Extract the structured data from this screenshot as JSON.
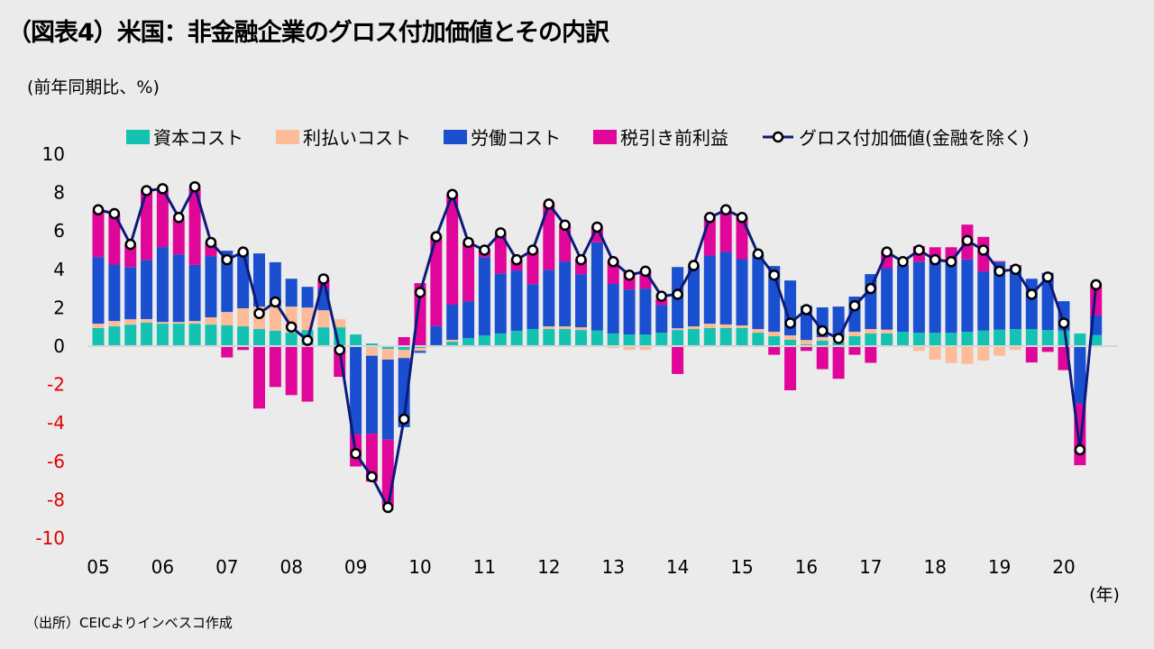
{
  "title": "（図表4）米国：非金融企業のグロス付加価値とその内訳",
  "unit_label": "(前年同期比、%)",
  "source": "（出所）CEICよりインベスコ作成",
  "colors": {
    "capital": "#14c2b2",
    "interest": "#fdbb98",
    "labor": "#1a4fd0",
    "profit": "#e0069a",
    "line": "#0d1a7a",
    "negative_tick": "#e00000",
    "background": "#ebebeb"
  },
  "chart_data": {
    "type": "bar",
    "stacked": true,
    "xlabel": "(年)",
    "x_tick_labels": [
      "05",
      "06",
      "07",
      "08",
      "09",
      "10",
      "11",
      "12",
      "13",
      "14",
      "15",
      "16",
      "17",
      "18",
      "19",
      "20"
    ],
    "ylim": [
      -10,
      10
    ],
    "y_ticks": [
      10,
      8,
      6,
      4,
      2,
      0,
      -2,
      -4,
      -6,
      -8,
      -10
    ],
    "grid": false,
    "legend_position": "top",
    "series": [
      {
        "name": "資本コスト",
        "key": "capital",
        "values": [
          0.94,
          1.03,
          1.12,
          1.22,
          1.17,
          1.17,
          1.17,
          1.12,
          1.08,
          1.03,
          0.89,
          0.8,
          0.7,
          0.84,
          0.98,
          0.98,
          0.61,
          0.14,
          -0.15,
          -0.2,
          -0.1,
          0.05,
          0.23,
          0.42,
          0.56,
          0.66,
          0.8,
          0.89,
          0.89,
          0.89,
          0.84,
          0.81,
          0.66,
          0.61,
          0.61,
          0.7,
          0.84,
          0.89,
          0.94,
          0.94,
          0.94,
          0.7,
          0.52,
          0.33,
          0.09,
          0.28,
          0.23,
          0.52,
          0.66,
          0.66,
          0.75,
          0.7,
          0.7,
          0.7,
          0.75,
          0.81,
          0.86,
          0.89,
          0.89,
          0.84,
          0.81,
          0.66,
          0.58
        ]
      },
      {
        "name": "利払いコスト",
        "key": "interest",
        "values": [
          0.23,
          0.28,
          0.28,
          0.19,
          0.09,
          0.09,
          0.14,
          0.38,
          0.7,
          0.94,
          1.17,
          1.27,
          1.36,
          1.17,
          0.89,
          0.42,
          0,
          -0.5,
          -0.55,
          -0.42,
          -0.15,
          0,
          0.1,
          0,
          0,
          0,
          0,
          0,
          0.14,
          0.14,
          0.14,
          0,
          -0.1,
          -0.2,
          -0.2,
          -0.05,
          0.09,
          0.14,
          0.23,
          0.19,
          0.14,
          0.19,
          0.23,
          0.23,
          0.23,
          0.19,
          0.23,
          0.23,
          0.23,
          0.2,
          0,
          -0.25,
          -0.7,
          -0.88,
          -0.92,
          -0.75,
          -0.5,
          -0.2,
          0,
          0,
          0,
          0,
          0
        ]
      },
      {
        "name": "労働コスト",
        "key": "labor",
        "values": [
          3.47,
          2.94,
          2.72,
          3.08,
          3.9,
          3.52,
          2.92,
          3.19,
          3.19,
          2.86,
          2.77,
          2.3,
          1.45,
          1.08,
          1.13,
          0,
          -4.58,
          -4.06,
          -4.17,
          -3.6,
          -0.1,
          1.0,
          1.83,
          1.92,
          4.08,
          3.13,
          3.14,
          2.34,
          2.95,
          3.38,
          2.77,
          4.6,
          2.58,
          2.34,
          2.39,
          1.44,
          3.19,
          3.14,
          3.55,
          3.78,
          3.45,
          3.86,
          3.42,
          2.86,
          1.78,
          1.55,
          1.6,
          1.83,
          2.86,
          3.2,
          3.5,
          3.7,
          3.7,
          3.62,
          3.77,
          3.08,
          3.52,
          3.28,
          2.62,
          2.98,
          1.53,
          -3.0,
          1.02
        ]
      },
      {
        "name": "税引き前利益",
        "key": "profit",
        "values": [
          2.4,
          2.6,
          1.14,
          3.6,
          3.0,
          1.84,
          3.98,
          0.66,
          -0.59,
          -0.2,
          -3.25,
          -2.13,
          -2.55,
          -2.89,
          0.47,
          -1.6,
          -1.69,
          -2.5,
          -3.44,
          0.47,
          3.28,
          4.7,
          5.73,
          3.03,
          0.33,
          2.03,
          0.56,
          1.73,
          3.45,
          1.84,
          0.75,
          0.83,
          1.2,
          0.9,
          0.94,
          0.31,
          -1.45,
          0,
          2.03,
          2.14,
          2.2,
          0,
          -0.45,
          -2.3,
          -0.25,
          -1.2,
          -1.7,
          -0.45,
          -0.87,
          0.8,
          0,
          0.81,
          0.75,
          0.83,
          1.81,
          1.8,
          0.05,
          0.05,
          -0.85,
          -0.3,
          -1.25,
          -3.2,
          1.64
        ]
      }
    ],
    "line_series": {
      "name": "グロス付加価値(金融を除く)",
      "type": "line",
      "values": [
        7.1,
        6.9,
        5.3,
        8.1,
        8.2,
        6.7,
        8.3,
        5.4,
        4.5,
        4.9,
        1.7,
        2.3,
        1.0,
        0.3,
        3.5,
        -0.2,
        -5.6,
        -6.8,
        -8.4,
        -3.8,
        2.8,
        5.7,
        7.9,
        5.4,
        5.0,
        5.9,
        4.5,
        5.0,
        7.4,
        6.3,
        4.5,
        6.2,
        4.4,
        3.7,
        3.9,
        2.6,
        2.7,
        4.2,
        6.7,
        7.1,
        6.7,
        4.8,
        3.7,
        1.2,
        1.9,
        0.8,
        0.4,
        2.1,
        3.0,
        4.9,
        4.4,
        5.0,
        4.5,
        4.4,
        5.5,
        5.0,
        3.9,
        4.0,
        2.7,
        3.6,
        1.2,
        -5.4,
        3.2
      ]
    }
  }
}
